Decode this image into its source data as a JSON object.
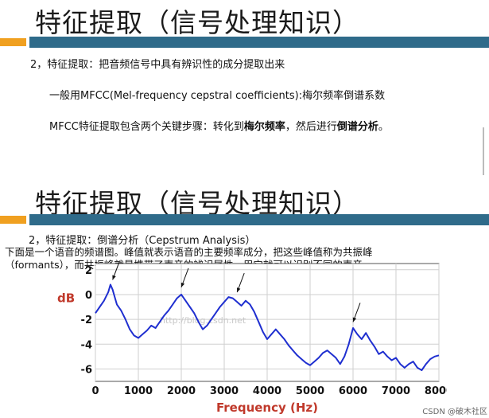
{
  "slide1": {
    "title": "特征提取（信号处理知识）",
    "line1": "2，特征提取：把音频信号中具有辨识性的成分提取出来",
    "line2": "一般用MFCC(Mel-frequency cepstral coefficients):梅尔频率倒谱系数",
    "line3_prefix": "MFCC特征提取包含两个关键步骤：转化到",
    "line3_bold1": "梅尔频率",
    "line3_mid": "，然后进行",
    "line3_bold2": "倒谱分析",
    "line3_suffix": "。"
  },
  "slide2": {
    "title": "特征提取（信号处理知识）",
    "line1": "2，特征提取：倒谱分析（Cepstrum Analysis）",
    "line2": "下面是一个语音的频谱图。峰值就表示语音的主要频率成分，把这些峰值称为共振峰",
    "line3": "（formants），而共振峰就是携带了声音的辨识属性，用它就可以识别不同的声音。"
  },
  "watermark": "http://blog.csdn.net",
  "caption": "CSDN @破木社区",
  "chart_data": {
    "type": "line",
    "xlabel": "Frequency (Hz)",
    "ylabel": "dB",
    "xlim": [
      0,
      8000
    ],
    "ylim": [
      -7,
      2.5
    ],
    "xticks": [
      0,
      1000,
      2000,
      3000,
      4000,
      5000,
      6000,
      7000,
      8000
    ],
    "yticks": [
      2,
      0,
      -2,
      -4,
      -6
    ],
    "grid": true,
    "line_color": "#1f2fd0",
    "axis_label_color": "#c0392b",
    "series": [
      {
        "x": [
          0,
          100,
          200,
          300,
          350,
          400,
          450,
          500,
          600,
          700,
          800,
          900,
          1000,
          1100,
          1200,
          1300,
          1400,
          1500,
          1600,
          1700,
          1800,
          1900,
          2000,
          2100,
          2200,
          2300,
          2400,
          2500,
          2600,
          2700,
          2800,
          2900,
          3000,
          3100,
          3200,
          3300,
          3400,
          3500,
          3600,
          3700,
          3800,
          3900,
          4000,
          4100,
          4200,
          4300,
          4400,
          4500,
          4600,
          4700,
          4800,
          4900,
          5000,
          5100,
          5200,
          5300,
          5400,
          5500,
          5600,
          5700,
          5800,
          5900,
          6000,
          6100,
          6200,
          6300,
          6400,
          6500,
          6600,
          6700,
          6800,
          6900,
          7000,
          7100,
          7200,
          7300,
          7400,
          7500,
          7600,
          7700,
          7800,
          7900,
          8000
        ],
        "y": [
          -1.5,
          -1.0,
          -0.5,
          0.2,
          0.8,
          0.4,
          -0.2,
          -0.8,
          -1.3,
          -2.0,
          -2.8,
          -3.3,
          -3.5,
          -3.2,
          -2.9,
          -2.5,
          -2.7,
          -2.2,
          -1.7,
          -1.3,
          -0.8,
          -0.3,
          0.0,
          -0.5,
          -1.0,
          -1.5,
          -2.2,
          -2.8,
          -2.5,
          -2.0,
          -1.5,
          -1.0,
          -0.6,
          -0.2,
          -0.3,
          -0.6,
          -0.9,
          -0.5,
          -0.8,
          -1.4,
          -2.2,
          -3.0,
          -3.6,
          -3.2,
          -2.8,
          -3.2,
          -3.6,
          -4.1,
          -4.5,
          -4.9,
          -5.2,
          -5.5,
          -5.7,
          -5.4,
          -5.1,
          -4.7,
          -4.5,
          -4.8,
          -5.1,
          -5.6,
          -5.0,
          -4.0,
          -2.7,
          -3.2,
          -3.6,
          -3.1,
          -3.7,
          -4.2,
          -4.8,
          -4.6,
          -5.0,
          -5.3,
          -5.1,
          -5.6,
          -5.9,
          -5.6,
          -5.4,
          -5.9,
          -6.1,
          -5.6,
          -5.2,
          -5.0,
          -4.9
        ]
      }
    ],
    "annotations": [
      {
        "type": "arrow",
        "target_x": 400,
        "target_y": 0.8
      },
      {
        "type": "arrow",
        "target_x": 2000,
        "target_y": 0.2
      },
      {
        "type": "arrow",
        "target_x": 3300,
        "target_y": -0.2
      },
      {
        "type": "arrow",
        "target_x": 6000,
        "target_y": -2.6
      }
    ]
  }
}
